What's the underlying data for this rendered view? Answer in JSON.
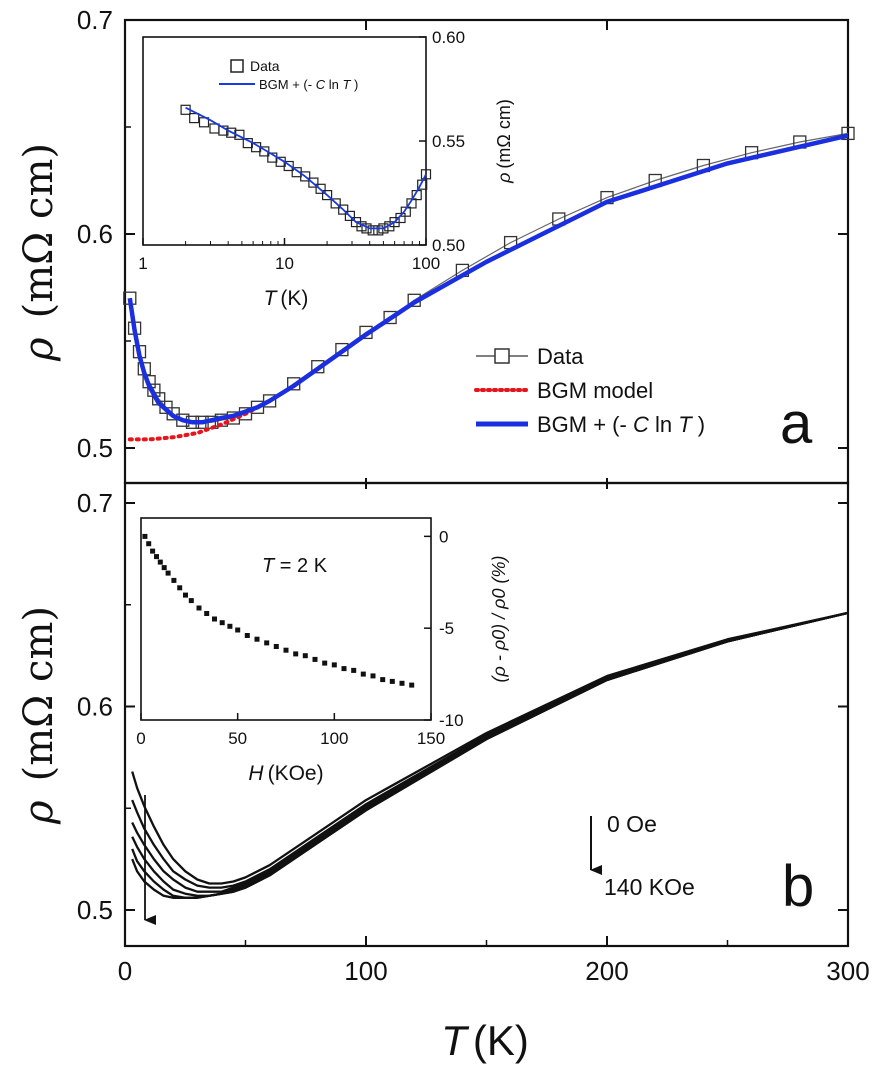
{
  "colors": {
    "axis": "#111111",
    "data_marker": "#333333",
    "bgm_model": "#e8141c",
    "bgm_fit": "#1a2fe0",
    "inset_fit": "#1a3adf",
    "field_curves": "#111111"
  },
  "shared_x": {
    "label_symbol": "T",
    "label_unit": "(K)",
    "ticks": [
      "0",
      "100",
      "200",
      "300"
    ],
    "xlim": [
      0,
      300
    ]
  },
  "panel_a": {
    "letter": "a",
    "ylabel_symbol": "ρ",
    "ylabel_unit": "(mΩ cm)",
    "ylim": [
      0.48,
      0.7
    ],
    "y_ticks": [
      "0.5",
      "0.6",
      "0.7"
    ],
    "legend": {
      "data": "Data",
      "bgm": "BGM model",
      "fit_prefix": "BGM + (- ",
      "fit_c": "C",
      "fit_ln": " ln ",
      "fit_t": "T",
      "fit_suffix": " )"
    },
    "inset": {
      "x_ticks": [
        "1",
        "10",
        "100"
      ],
      "y_ticks": [
        "0.50",
        "0.55",
        "0.60"
      ],
      "xlabel_symbol": "T",
      "xlabel_unit": "(K)",
      "ylabel_symbol": "ρ",
      "ylabel_unit": "(mΩ cm)",
      "legend_data": "Data",
      "legend_fit_prefix": "BGM + (- ",
      "legend_fit_c": "C",
      "legend_fit_ln": " ln ",
      "legend_fit_t": "T",
      "legend_fit_suffix": " )"
    }
  },
  "panel_b": {
    "letter": "b",
    "ylabel_symbol": "ρ",
    "ylabel_unit": "(mΩ cm)",
    "ylim": [
      0.48,
      0.7
    ],
    "y_ticks": [
      "0.5",
      "0.6",
      "0.7"
    ],
    "arrow_top_label": "0 Oe",
    "arrow_bottom_label": "140 KOe",
    "inset": {
      "annotation_t": "T",
      "annotation_rest": " = 2 K",
      "x_ticks": [
        "0",
        "50",
        "100",
        "150"
      ],
      "y_ticks": [
        "0",
        "-5",
        "-10"
      ],
      "xlabel_symbol": "H",
      "xlabel_unit": "(KOe)",
      "ylabel": "(ρ - ρ0) / ρ0 (%)"
    }
  },
  "chart_data": [
    {
      "panel": "a",
      "type": "scatter",
      "xlim": [
        0,
        300
      ],
      "ylim": [
        0.48,
        0.7
      ],
      "series": [
        {
          "name": "Data",
          "style": "line+open-square",
          "x": [
            2,
            4,
            6,
            8,
            10,
            12,
            14,
            17,
            20,
            24,
            28,
            32,
            36,
            40,
            45,
            50,
            55,
            60,
            70,
            80,
            90,
            100,
            110,
            120,
            140,
            160,
            180,
            200,
            220,
            240,
            260,
            280,
            300
          ],
          "y": [
            0.57,
            0.556,
            0.545,
            0.537,
            0.531,
            0.527,
            0.523,
            0.519,
            0.516,
            0.513,
            0.512,
            0.512,
            0.512,
            0.513,
            0.514,
            0.516,
            0.519,
            0.522,
            0.53,
            0.538,
            0.546,
            0.554,
            0.561,
            0.569,
            0.583,
            0.596,
            0.607,
            0.617,
            0.625,
            0.632,
            0.638,
            0.643,
            0.647
          ]
        },
        {
          "name": "BGM model",
          "style": "dotted",
          "x": [
            2,
            10,
            20,
            30,
            40,
            50,
            60,
            70,
            80,
            100,
            120,
            150,
            200,
            250,
            300
          ],
          "y": [
            0.504,
            0.504,
            0.505,
            0.507,
            0.511,
            0.516,
            0.522,
            0.529,
            0.537,
            0.553,
            0.568,
            0.587,
            0.615,
            0.633,
            0.646
          ]
        },
        {
          "name": "BGM + (- C ln T )",
          "style": "thick-line",
          "x": [
            2,
            4,
            6,
            8,
            10,
            12,
            14,
            17,
            20,
            24,
            28,
            32,
            36,
            40,
            45,
            50,
            55,
            60,
            70,
            80,
            100,
            120,
            150,
            200,
            250,
            300
          ],
          "y": [
            0.57,
            0.555,
            0.543,
            0.535,
            0.529,
            0.525,
            0.521,
            0.518,
            0.515,
            0.513,
            0.512,
            0.512,
            0.513,
            0.514,
            0.515,
            0.517,
            0.519,
            0.522,
            0.529,
            0.537,
            0.553,
            0.568,
            0.587,
            0.615,
            0.633,
            0.646
          ]
        }
      ]
    },
    {
      "panel": "a-inset",
      "type": "scatter",
      "x_scale": "log",
      "xlim": [
        1,
        100
      ],
      "ylim": [
        0.5,
        0.6
      ],
      "series": [
        {
          "name": "Data",
          "style": "open-square",
          "x": [
            2,
            2.3,
            2.7,
            3.2,
            3.7,
            4.2,
            4.8,
            5.5,
            6.3,
            7.2,
            8.2,
            9.4,
            10.7,
            12.2,
            14,
            16,
            18,
            20,
            23,
            26,
            29,
            32,
            35,
            38,
            42,
            46,
            50,
            55,
            60,
            66,
            72,
            79,
            86,
            94,
            100
          ],
          "y": [
            0.565,
            0.561,
            0.559,
            0.556,
            0.555,
            0.554,
            0.553,
            0.549,
            0.547,
            0.545,
            0.542,
            0.54,
            0.538,
            0.535,
            0.533,
            0.53,
            0.527,
            0.524,
            0.52,
            0.517,
            0.514,
            0.511,
            0.509,
            0.508,
            0.507,
            0.507,
            0.508,
            0.509,
            0.511,
            0.513,
            0.516,
            0.52,
            0.524,
            0.529,
            0.534
          ]
        },
        {
          "name": "BGM + (- C ln T )",
          "style": "line",
          "x": [
            2,
            3,
            4,
            6,
            8,
            10,
            14,
            20,
            26,
            32,
            40,
            50,
            60,
            70,
            80,
            90,
            100
          ],
          "y": [
            0.566,
            0.56,
            0.555,
            0.549,
            0.544,
            0.54,
            0.533,
            0.524,
            0.517,
            0.511,
            0.508,
            0.508,
            0.511,
            0.516,
            0.522,
            0.528,
            0.534
          ]
        }
      ]
    },
    {
      "panel": "b",
      "type": "line",
      "xlim": [
        0,
        300
      ],
      "ylim": [
        0.48,
        0.7
      ],
      "series": [
        {
          "x": [
            3,
            5,
            8,
            12,
            16,
            20,
            25,
            30,
            35,
            40,
            45,
            50,
            60,
            80,
            100,
            150,
            200,
            250,
            300
          ],
          "y": [
            0.568,
            0.56,
            0.551,
            0.541,
            0.532,
            0.525,
            0.519,
            0.515,
            0.513,
            0.513,
            0.514,
            0.516,
            0.522,
            0.538,
            0.554,
            0.587,
            0.615,
            0.633,
            0.646
          ]
        },
        {
          "x": [
            3,
            5,
            8,
            12,
            16,
            20,
            25,
            30,
            35,
            40,
            45,
            50,
            60,
            80,
            100,
            150,
            200,
            250,
            300
          ],
          "y": [
            0.554,
            0.548,
            0.54,
            0.532,
            0.525,
            0.519,
            0.515,
            0.512,
            0.511,
            0.511,
            0.512,
            0.514,
            0.52,
            0.536,
            0.552,
            0.586,
            0.614,
            0.632,
            0.646
          ]
        },
        {
          "x": [
            3,
            5,
            8,
            12,
            16,
            20,
            25,
            30,
            35,
            40,
            45,
            50,
            60,
            80,
            100,
            150,
            200,
            250,
            300
          ],
          "y": [
            0.543,
            0.538,
            0.532,
            0.525,
            0.519,
            0.515,
            0.511,
            0.509,
            0.509,
            0.509,
            0.511,
            0.513,
            0.519,
            0.535,
            0.551,
            0.585,
            0.614,
            0.632,
            0.646
          ]
        },
        {
          "x": [
            3,
            5,
            8,
            12,
            16,
            20,
            25,
            30,
            35,
            40,
            45,
            50,
            60,
            80,
            100,
            150,
            200,
            250,
            300
          ],
          "y": [
            0.536,
            0.531,
            0.525,
            0.519,
            0.514,
            0.51,
            0.508,
            0.507,
            0.507,
            0.508,
            0.51,
            0.512,
            0.518,
            0.534,
            0.55,
            0.585,
            0.613,
            0.632,
            0.646
          ]
        },
        {
          "x": [
            3,
            5,
            8,
            12,
            16,
            20,
            25,
            30,
            35,
            40,
            45,
            50,
            60,
            80,
            100,
            150,
            200,
            250,
            300
          ],
          "y": [
            0.53,
            0.524,
            0.519,
            0.514,
            0.51,
            0.507,
            0.506,
            0.506,
            0.507,
            0.508,
            0.509,
            0.511,
            0.517,
            0.533,
            0.549,
            0.584,
            0.613,
            0.632,
            0.646
          ]
        },
        {
          "x": [
            3,
            5,
            8,
            12,
            16,
            20,
            25,
            30,
            35,
            40,
            45,
            50,
            60,
            80,
            100,
            150,
            200,
            250,
            300
          ],
          "y": [
            0.525,
            0.519,
            0.514,
            0.51,
            0.507,
            0.506,
            0.506,
            0.506,
            0.507,
            0.508,
            0.509,
            0.511,
            0.517,
            0.533,
            0.549,
            0.584,
            0.613,
            0.632,
            0.646
          ]
        }
      ]
    },
    {
      "panel": "b-inset",
      "type": "scatter",
      "xlim": [
        0,
        150
      ],
      "ylim": [
        -10,
        1
      ],
      "series": [
        {
          "style": "filled-square",
          "x": [
            2,
            4,
            6,
            8,
            10,
            12,
            14,
            17,
            20,
            23,
            26,
            30,
            34,
            38,
            42,
            46,
            50,
            55,
            60,
            65,
            70,
            75,
            80,
            85,
            90,
            95,
            100,
            105,
            110,
            115,
            120,
            125,
            130,
            135,
            140
          ],
          "y": [
            0.0,
            -0.4,
            -0.8,
            -1.1,
            -1.4,
            -1.7,
            -2.0,
            -2.4,
            -2.8,
            -3.2,
            -3.5,
            -3.9,
            -4.2,
            -4.5,
            -4.7,
            -4.9,
            -5.1,
            -5.4,
            -5.6,
            -5.8,
            -6.0,
            -6.2,
            -6.4,
            -6.5,
            -6.7,
            -6.9,
            -7.0,
            -7.2,
            -7.3,
            -7.5,
            -7.6,
            -7.8,
            -7.9,
            -8.0,
            -8.1
          ]
        }
      ]
    }
  ]
}
